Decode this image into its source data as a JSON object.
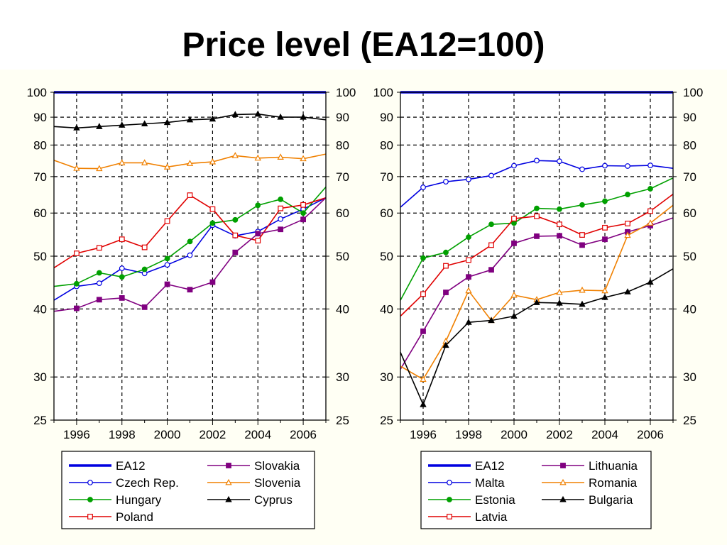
{
  "page": {
    "title": "Price level (EA12=100)",
    "background_color": "#fffff4"
  },
  "chart_data": [
    {
      "type": "line",
      "title": "",
      "xlabel": "",
      "ylabel": "",
      "y_scale": "log",
      "ylim": [
        25,
        100
      ],
      "xlim": [
        1995,
        2007
      ],
      "x_ticks": [
        1996,
        1998,
        2000,
        2002,
        2004,
        2006
      ],
      "y_ticks": [
        25,
        30,
        40,
        50,
        60,
        70,
        80,
        90,
        100
      ],
      "grid": "dashed",
      "legend_placement": "below",
      "x": [
        1995,
        1996,
        1997,
        1998,
        1999,
        2000,
        2001,
        2002,
        2003,
        2004,
        2005,
        2006,
        2007
      ],
      "series": [
        {
          "name": "EA12",
          "color": "#0000e0",
          "marker": "none",
          "width": 3.5,
          "values": [
            100,
            100,
            100,
            100,
            100,
            100,
            100,
            100,
            100,
            100,
            100,
            100,
            100
          ]
        },
        {
          "name": "Czech Rep.",
          "color": "#0000e0",
          "marker": "circle-open",
          "values": [
            41.5,
            44,
            44.6,
            47.5,
            46.5,
            48.2,
            50.2,
            57,
            54.5,
            55.5,
            58.5,
            61,
            64
          ]
        },
        {
          "name": "Hungary",
          "color": "#00a000",
          "marker": "circle-filled",
          "values": [
            44,
            44.5,
            46.6,
            45.8,
            47.3,
            49.5,
            53.2,
            57.5,
            58.3,
            62,
            63.6,
            60,
            67
          ]
        },
        {
          "name": "Poland",
          "color": "#e00000",
          "marker": "square-open",
          "values": [
            47.6,
            50.6,
            51.8,
            53.7,
            51.9,
            58,
            64.7,
            61,
            54.6,
            53.4,
            61.2,
            62.1,
            64
          ]
        },
        {
          "name": "Slovakia",
          "color": "#800080",
          "marker": "square-filled",
          "values": [
            39.6,
            40.1,
            41.6,
            41.9,
            40.3,
            44.4,
            43.4,
            44.8,
            50.8,
            55,
            56,
            58.4,
            64
          ]
        },
        {
          "name": "Slovenia",
          "color": "#f08000",
          "marker": "triangle-open",
          "values": [
            75,
            72.5,
            72.4,
            74.2,
            74.2,
            72.9,
            74,
            74.5,
            76.5,
            75.7,
            76,
            75.5,
            77
          ]
        },
        {
          "name": "Cyprus",
          "color": "#000000",
          "marker": "triangle-filled",
          "values": [
            86.5,
            86,
            86.5,
            87,
            87.5,
            88,
            89,
            89.3,
            91,
            91.2,
            90,
            90,
            89
          ]
        }
      ]
    },
    {
      "type": "line",
      "title": "",
      "xlabel": "",
      "ylabel": "",
      "y_scale": "log",
      "ylim": [
        25,
        100
      ],
      "xlim": [
        1995,
        2007
      ],
      "x_ticks": [
        1996,
        1998,
        2000,
        2002,
        2004,
        2006
      ],
      "y_ticks": [
        25,
        30,
        40,
        50,
        60,
        70,
        80,
        90,
        100
      ],
      "grid": "dashed",
      "legend_placement": "below",
      "x": [
        1995,
        1996,
        1997,
        1998,
        1999,
        2000,
        2001,
        2002,
        2003,
        2004,
        2005,
        2006,
        2007
      ],
      "series": [
        {
          "name": "EA12",
          "color": "#0000e0",
          "marker": "none",
          "width": 3.5,
          "values": [
            100,
            100,
            100,
            100,
            100,
            100,
            100,
            100,
            100,
            100,
            100,
            100,
            100
          ]
        },
        {
          "name": "Malta",
          "color": "#0000e0",
          "marker": "circle-open",
          "values": [
            61.5,
            66.9,
            68.5,
            69.2,
            70.3,
            73.3,
            74.9,
            74.7,
            72.2,
            73.3,
            73.2,
            73.4,
            72.5
          ]
        },
        {
          "name": "Estonia",
          "color": "#00a000",
          "marker": "circle-filled",
          "values": [
            41.5,
            49.6,
            50.8,
            54.2,
            57.2,
            57.5,
            61.2,
            61,
            62.1,
            63.1,
            64.9,
            66.5,
            69.6
          ]
        },
        {
          "name": "Latvia",
          "color": "#e00000",
          "marker": "square-open",
          "values": [
            38.8,
            42.6,
            48,
            49.2,
            52.4,
            58.6,
            59.2,
            57.2,
            54.7,
            56.4,
            57.4,
            60.5,
            65
          ]
        },
        {
          "name": "Lithuania",
          "color": "#800080",
          "marker": "square-filled",
          "values": [
            31,
            36.4,
            42.9,
            45.8,
            47.2,
            52.8,
            54.4,
            54.5,
            52.4,
            53.7,
            55.4,
            56.9,
            58.8
          ]
        },
        {
          "name": "Romania",
          "color": "#f08000",
          "marker": "triangle-open",
          "values": [
            31.4,
            29.7,
            34.9,
            43.2,
            38.1,
            42.4,
            41.6,
            42.9,
            43.3,
            43.2,
            54.6,
            57.5,
            62
          ]
        },
        {
          "name": "Bulgaria",
          "color": "#000000",
          "marker": "triangle-filled",
          "values": [
            33.3,
            26.7,
            34.3,
            37.8,
            38.1,
            38.8,
            41.1,
            41,
            40.8,
            42,
            43,
            44.8,
            47.4
          ]
        }
      ]
    }
  ]
}
